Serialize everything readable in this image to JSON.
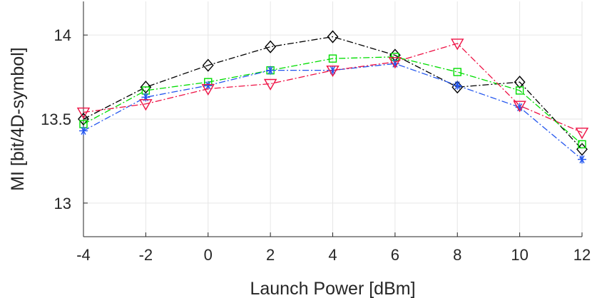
{
  "chart_data": {
    "type": "line",
    "xlabel": "Launch Power [dBm]",
    "ylabel": "MI [bit/4D-symbol]",
    "xlim": [
      -4,
      12
    ],
    "ylim": [
      12.8,
      14.2
    ],
    "xticks": [
      -4,
      -2,
      0,
      2,
      4,
      6,
      8,
      10,
      12
    ],
    "xtick_labels": [
      "-4",
      "-2",
      "0",
      "2",
      "4",
      "6",
      "8",
      "10",
      "12"
    ],
    "yticks": [
      13,
      13.5,
      14
    ],
    "ytick_labels": [
      "13",
      "13.5",
      "14"
    ],
    "grid": true,
    "x": [
      -4,
      -2,
      0,
      2,
      4,
      6,
      8,
      10,
      12
    ],
    "series": [
      {
        "marker": "diamond",
        "color": "#000000",
        "values": [
          13.5,
          13.69,
          13.82,
          13.93,
          13.99,
          13.88,
          13.69,
          13.72,
          13.32
        ]
      },
      {
        "marker": "square",
        "color": "#00dd00",
        "values": [
          13.47,
          13.67,
          13.72,
          13.79,
          13.86,
          13.87,
          13.78,
          13.67,
          13.35
        ]
      },
      {
        "marker": "asterisk",
        "color": "#2255ee",
        "values": [
          13.43,
          13.63,
          13.7,
          13.79,
          13.79,
          13.83,
          13.7,
          13.57,
          13.26
        ]
      },
      {
        "marker": "triangle-down",
        "color": "#ee1144",
        "values": [
          13.54,
          13.59,
          13.68,
          13.71,
          13.79,
          13.84,
          13.95,
          13.58,
          13.42
        ]
      }
    ]
  }
}
